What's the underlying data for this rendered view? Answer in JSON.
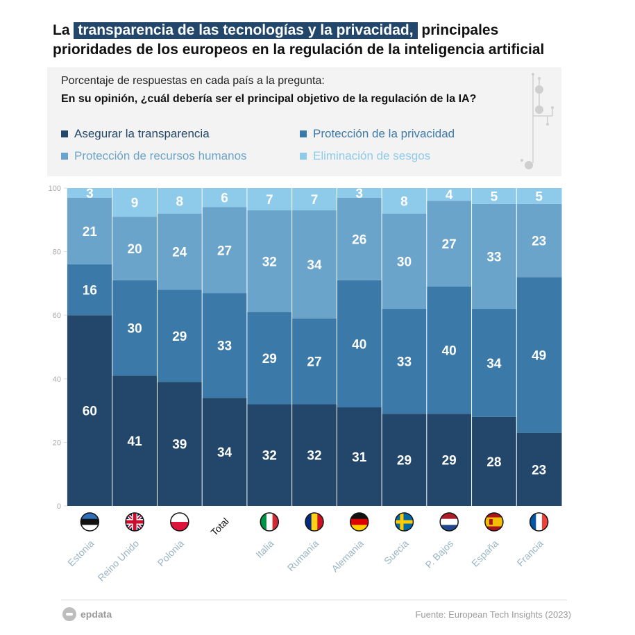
{
  "header": {
    "title_pre": "La",
    "title_highlight": "transparencia de las tecnologías y la privacidad,",
    "title_post": "principales",
    "title_line2": "prioridades de los europeos en la regulación de la inteligencia artificial"
  },
  "panel": {
    "intro": "Porcentaje de respuestas en cada país a la pregunta:",
    "question": "En su opinión, ¿cuál debería ser el principal objetivo de la regulación de la IA?"
  },
  "footer": {
    "brand": "epdata",
    "source": "Fuente: European Tech Insights (2023)"
  },
  "colors": {
    "transparencia": "#23476a",
    "privacidad": "#3b7aa8",
    "recursos": "#6ba4ca",
    "sesgos": "#8ecbea",
    "axis_text": "#aaaaaa",
    "category_text": "#9ab6c4"
  },
  "chart_data": {
    "type": "bar",
    "stacked": true,
    "categories": [
      "Estonia",
      "Reino Unido",
      "Polonia",
      "Total",
      "Italia",
      "Rumanía",
      "Alemania",
      "Suecia",
      "P. Bajos",
      "España",
      "Francia"
    ],
    "series": [
      {
        "name": "Asegurar la transparencia",
        "color": "#23476a",
        "values": [
          60,
          41,
          39,
          34,
          32,
          32,
          31,
          29,
          29,
          28,
          23
        ]
      },
      {
        "name": "Protección de la privacidad",
        "color": "#3b7aa8",
        "values": [
          16,
          30,
          29,
          33,
          29,
          27,
          40,
          33,
          40,
          34,
          49
        ]
      },
      {
        "name": "Protección de recursos humanos",
        "color": "#6ba4ca",
        "values": [
          21,
          20,
          24,
          27,
          32,
          34,
          26,
          30,
          27,
          33,
          23
        ]
      },
      {
        "name": "Eliminación de sesgos",
        "color": "#8ecbea",
        "values": [
          3,
          9,
          8,
          6,
          7,
          7,
          3,
          8,
          4,
          5,
          5
        ]
      }
    ],
    "y_ticks": [
      0,
      20,
      40,
      60,
      80,
      100
    ],
    "ylim": [
      0,
      100
    ],
    "legend_position": "top",
    "flags": [
      "estonia-flag-icon",
      "uk-flag-icon",
      "poland-flag-icon",
      "",
      "italy-flag-icon",
      "romania-flag-icon",
      "germany-flag-icon",
      "sweden-flag-icon",
      "netherlands-flag-icon",
      "spain-flag-icon",
      "france-flag-icon"
    ]
  }
}
